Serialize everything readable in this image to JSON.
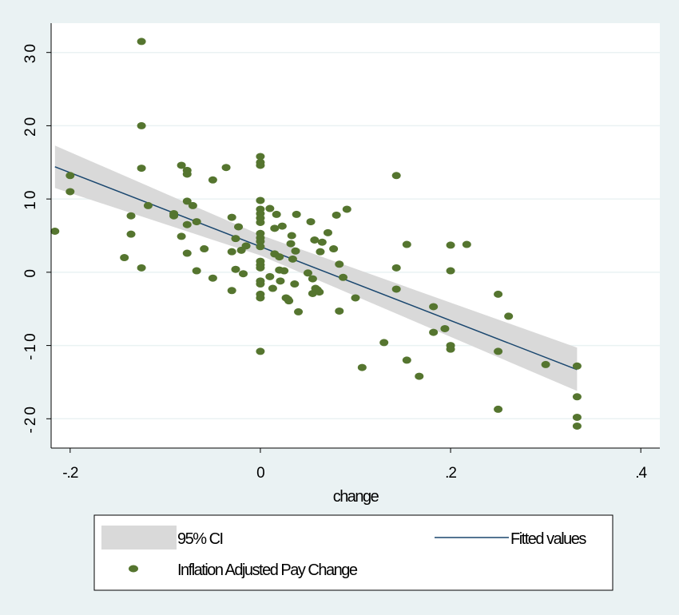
{
  "colors": {
    "background": "#eaf2f3",
    "plot_bg": "#ffffff",
    "grid": "#eaf2f3",
    "ci_band": "#d9d9d9",
    "fitted_line": "#1a476f",
    "points": "#55752f"
  },
  "chart_data": {
    "type": "scatter",
    "xlabel": "change",
    "ylabel": "",
    "xlim": [
      -0.22,
      0.42
    ],
    "ylim": [
      -24,
      34
    ],
    "x_ticks": [
      {
        "value": -0.2,
        "label": "-.2"
      },
      {
        "value": 0,
        "label": "0"
      },
      {
        "value": 0.2,
        "label": ".2"
      },
      {
        "value": 0.4,
        "label": ".4"
      }
    ],
    "y_ticks": [
      {
        "value": -20,
        "label": "-20"
      },
      {
        "value": -10,
        "label": "-10"
      },
      {
        "value": 0,
        "label": "0"
      },
      {
        "value": 10,
        "label": "10"
      },
      {
        "value": 20,
        "label": "20"
      },
      {
        "value": 30,
        "label": "30"
      }
    ],
    "grid": "horizontal",
    "legend_position": "bottom",
    "series": [
      {
        "name": "95% CI",
        "kind": "band",
        "points": [
          {
            "x": -0.216,
            "lower": 11.5,
            "upper": 17.3
          },
          {
            "x": 0.0,
            "lower": 2.3,
            "upper": 5.1
          },
          {
            "x": 0.333,
            "lower": -16.2,
            "upper": -10.3
          }
        ]
      },
      {
        "name": "Fitted values",
        "kind": "line",
        "points": [
          {
            "x": -0.216,
            "y": 14.4
          },
          {
            "x": 0.333,
            "y": -13.3
          }
        ]
      },
      {
        "name": "Inflation Adjusted Pay Change",
        "kind": "scatter",
        "points": [
          {
            "x": -0.216,
            "y": 5.6
          },
          {
            "x": -0.2,
            "y": 13.2
          },
          {
            "x": -0.2,
            "y": 11.0
          },
          {
            "x": -0.143,
            "y": 2.0
          },
          {
            "x": -0.136,
            "y": 7.7
          },
          {
            "x": -0.136,
            "y": 5.2
          },
          {
            "x": -0.125,
            "y": 31.5
          },
          {
            "x": -0.125,
            "y": 20.0
          },
          {
            "x": -0.125,
            "y": 14.2
          },
          {
            "x": -0.125,
            "y": 0.6
          },
          {
            "x": -0.118,
            "y": 9.1
          },
          {
            "x": -0.091,
            "y": 8.0
          },
          {
            "x": -0.091,
            "y": 7.7
          },
          {
            "x": -0.083,
            "y": 14.6
          },
          {
            "x": -0.083,
            "y": 4.9
          },
          {
            "x": -0.077,
            "y": 13.9
          },
          {
            "x": -0.077,
            "y": 13.4
          },
          {
            "x": -0.077,
            "y": 9.7
          },
          {
            "x": -0.077,
            "y": 6.5
          },
          {
            "x": -0.077,
            "y": 2.6
          },
          {
            "x": -0.071,
            "y": 9.1
          },
          {
            "x": -0.067,
            "y": 6.9
          },
          {
            "x": -0.067,
            "y": 0.2
          },
          {
            "x": -0.059,
            "y": 3.2
          },
          {
            "x": -0.05,
            "y": 12.6
          },
          {
            "x": -0.05,
            "y": -0.8
          },
          {
            "x": -0.036,
            "y": 14.3
          },
          {
            "x": -0.03,
            "y": 7.5
          },
          {
            "x": -0.03,
            "y": 2.8
          },
          {
            "x": -0.03,
            "y": -2.5
          },
          {
            "x": -0.026,
            "y": 4.6
          },
          {
            "x": -0.026,
            "y": 0.4
          },
          {
            "x": -0.023,
            "y": 6.2
          },
          {
            "x": -0.02,
            "y": 3.0
          },
          {
            "x": -0.018,
            "y": -0.2
          },
          {
            "x": -0.015,
            "y": 3.6
          },
          {
            "x": 0.0,
            "y": 15.8
          },
          {
            "x": 0.0,
            "y": 15.0
          },
          {
            "x": 0.0,
            "y": 14.6
          },
          {
            "x": 0.0,
            "y": 9.8
          },
          {
            "x": 0.0,
            "y": 8.6
          },
          {
            "x": 0.0,
            "y": 8.0
          },
          {
            "x": 0.0,
            "y": 7.4
          },
          {
            "x": 0.0,
            "y": 6.8
          },
          {
            "x": 0.0,
            "y": 5.3
          },
          {
            "x": 0.0,
            "y": 4.7
          },
          {
            "x": 0.0,
            "y": 4.2
          },
          {
            "x": 0.0,
            "y": 3.5
          },
          {
            "x": 0.0,
            "y": 1.5
          },
          {
            "x": 0.0,
            "y": 1.0
          },
          {
            "x": 0.0,
            "y": 0.6
          },
          {
            "x": 0.0,
            "y": -1.2
          },
          {
            "x": 0.0,
            "y": -1.6
          },
          {
            "x": 0.0,
            "y": -3.0
          },
          {
            "x": 0.0,
            "y": -3.5
          },
          {
            "x": 0.0,
            "y": -10.8
          },
          {
            "x": 0.01,
            "y": 8.7
          },
          {
            "x": 0.01,
            "y": -0.6
          },
          {
            "x": 0.013,
            "y": -2.2
          },
          {
            "x": 0.015,
            "y": 6.0
          },
          {
            "x": 0.015,
            "y": 2.5
          },
          {
            "x": 0.017,
            "y": 7.9
          },
          {
            "x": 0.02,
            "y": 0.3
          },
          {
            "x": 0.02,
            "y": 2.1
          },
          {
            "x": 0.021,
            "y": -1.2
          },
          {
            "x": 0.023,
            "y": 6.3
          },
          {
            "x": 0.025,
            "y": 0.2
          },
          {
            "x": 0.027,
            "y": -3.5
          },
          {
            "x": 0.029,
            "y": -3.7
          },
          {
            "x": 0.03,
            "y": -3.9
          },
          {
            "x": 0.032,
            "y": 3.9
          },
          {
            "x": 0.033,
            "y": 5.0
          },
          {
            "x": 0.034,
            "y": 1.8
          },
          {
            "x": 0.036,
            "y": -1.6
          },
          {
            "x": 0.037,
            "y": 2.9
          },
          {
            "x": 0.038,
            "y": 7.9
          },
          {
            "x": 0.04,
            "y": -5.4
          },
          {
            "x": 0.05,
            "y": -0.1
          },
          {
            "x": 0.053,
            "y": 6.9
          },
          {
            "x": 0.055,
            "y": -0.9
          },
          {
            "x": 0.055,
            "y": -2.9
          },
          {
            "x": 0.057,
            "y": 4.4
          },
          {
            "x": 0.058,
            "y": -2.2
          },
          {
            "x": 0.06,
            "y": -2.4
          },
          {
            "x": 0.062,
            "y": -2.7
          },
          {
            "x": 0.063,
            "y": 2.8
          },
          {
            "x": 0.065,
            "y": 4.1
          },
          {
            "x": 0.071,
            "y": 5.4
          },
          {
            "x": 0.077,
            "y": 3.2
          },
          {
            "x": 0.08,
            "y": 7.8
          },
          {
            "x": 0.083,
            "y": 1.1
          },
          {
            "x": 0.083,
            "y": -5.3
          },
          {
            "x": 0.087,
            "y": -0.7
          },
          {
            "x": 0.091,
            "y": 8.6
          },
          {
            "x": 0.1,
            "y": -3.5
          },
          {
            "x": 0.107,
            "y": -13.0
          },
          {
            "x": 0.13,
            "y": -9.6
          },
          {
            "x": 0.143,
            "y": 13.2
          },
          {
            "x": 0.143,
            "y": 0.6
          },
          {
            "x": 0.143,
            "y": -2.3
          },
          {
            "x": 0.154,
            "y": 3.8
          },
          {
            "x": 0.154,
            "y": -12.0
          },
          {
            "x": 0.167,
            "y": -14.2
          },
          {
            "x": 0.182,
            "y": -4.7
          },
          {
            "x": 0.182,
            "y": -8.2
          },
          {
            "x": 0.194,
            "y": -7.7
          },
          {
            "x": 0.2,
            "y": 3.7
          },
          {
            "x": 0.2,
            "y": 0.2
          },
          {
            "x": 0.2,
            "y": -10.0
          },
          {
            "x": 0.2,
            "y": -10.5
          },
          {
            "x": 0.217,
            "y": 3.8
          },
          {
            "x": 0.25,
            "y": -3.0
          },
          {
            "x": 0.25,
            "y": -10.8
          },
          {
            "x": 0.25,
            "y": -18.7
          },
          {
            "x": 0.261,
            "y": -6.0
          },
          {
            "x": 0.3,
            "y": -12.6
          },
          {
            "x": 0.333,
            "y": -12.8
          },
          {
            "x": 0.333,
            "y": -17.0
          },
          {
            "x": 0.333,
            "y": -19.8
          },
          {
            "x": 0.333,
            "y": -21.0
          }
        ]
      }
    ]
  },
  "legend": {
    "ci_label": "95% CI",
    "fitted_label": "Fitted values",
    "points_label": "Inflation Adjusted Pay Change"
  }
}
